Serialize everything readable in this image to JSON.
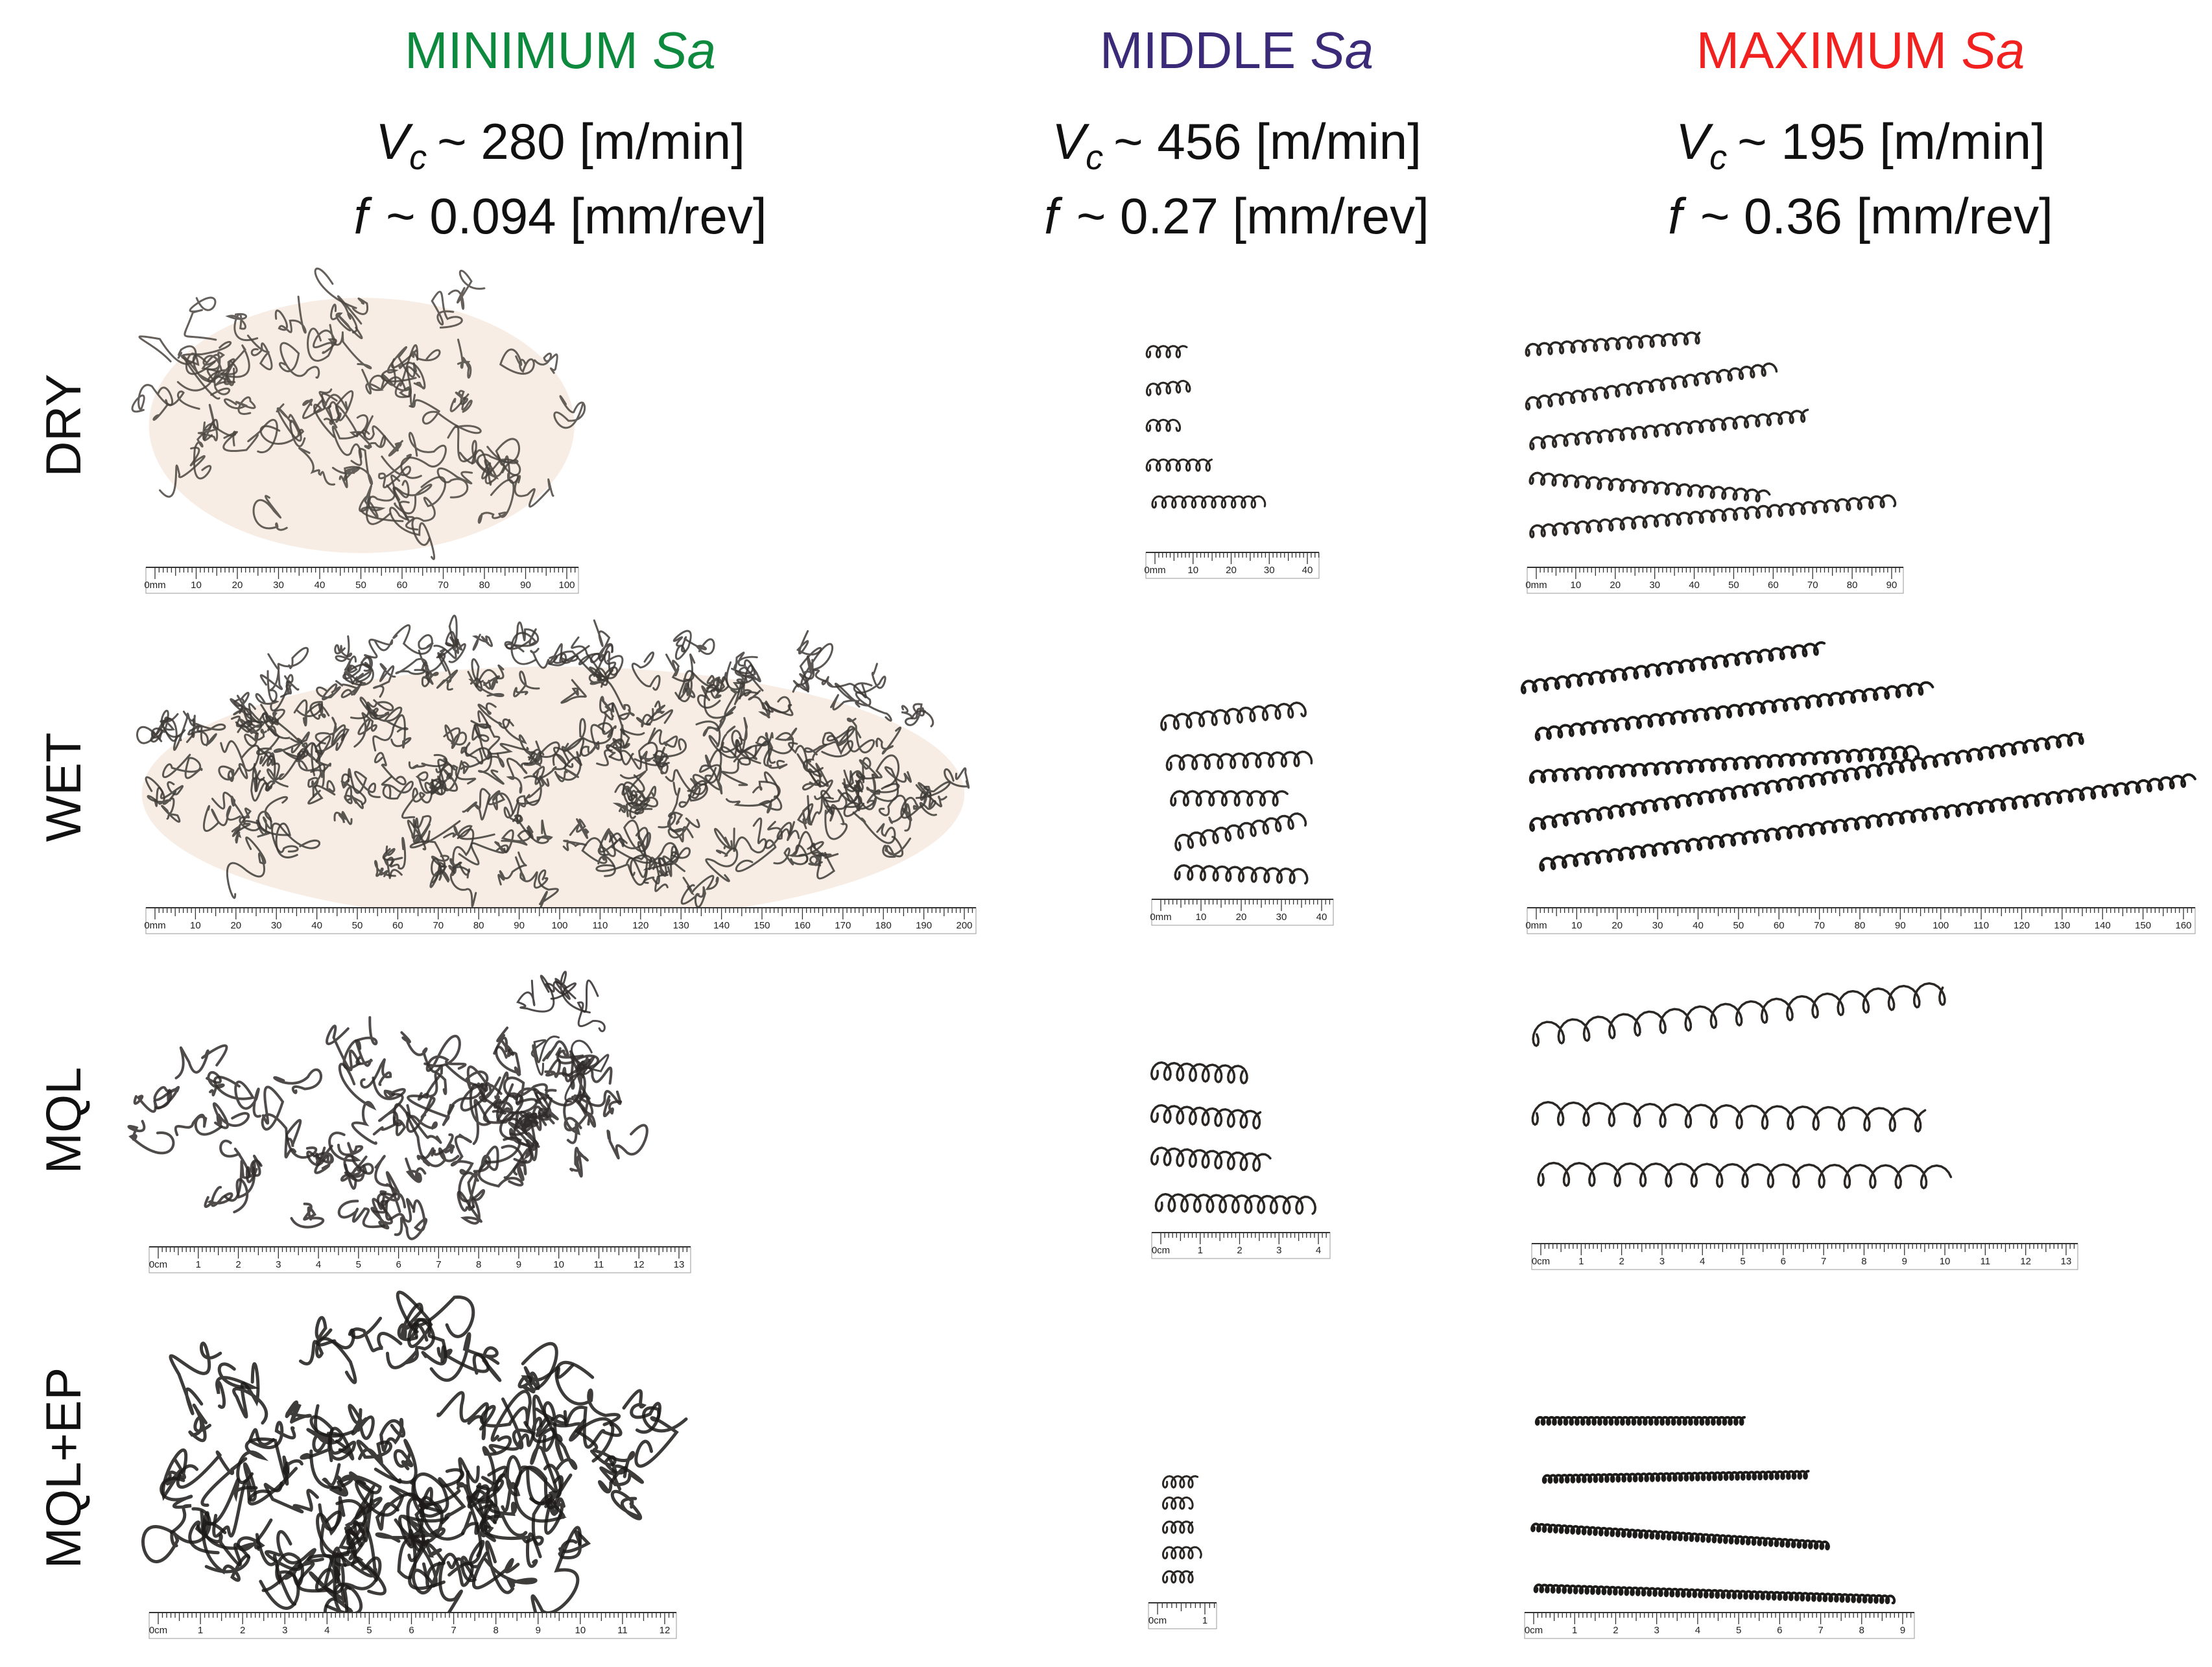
{
  "columns": [
    {
      "name": "MINIMUM",
      "symbol": "Sa",
      "color": "#0d8a3e",
      "speed": {
        "symbol": "V",
        "subscript": "c",
        "text": "~ 280 [m/min]"
      },
      "feed": {
        "symbol": "f",
        "text": "~ 0.094 [mm/rev]"
      }
    },
    {
      "name": "MIDDLE",
      "symbol": "Sa",
      "color": "#3b2a78",
      "speed": {
        "symbol": "V",
        "subscript": "c",
        "text": "~ 456 [m/min]"
      },
      "feed": {
        "symbol": "f",
        "text": "~ 0.27 [mm/rev]"
      }
    },
    {
      "name": "MAXIMUM",
      "symbol": "Sa",
      "color": "#f0211f",
      "speed": {
        "symbol": "V",
        "subscript": "c",
        "text": "~ 195 [m/min]"
      },
      "feed": {
        "symbol": "f",
        "text": "~ 0.36 [mm/rev]"
      }
    }
  ],
  "rows": [
    {
      "label": "DRY",
      "rulers": [
        [
          "0mm",
          "10",
          "20",
          "30",
          "40",
          "50",
          "60",
          "70",
          "80",
          "90",
          "100"
        ],
        [
          "0mm",
          "10",
          "20",
          "30",
          "40"
        ],
        [
          "0mm",
          "10",
          "20",
          "30",
          "40",
          "50",
          "60",
          "70",
          "80",
          "90"
        ]
      ]
    },
    {
      "label": "WET",
      "rulers": [
        [
          "0mm",
          "10",
          "20",
          "30",
          "40",
          "50",
          "60",
          "70",
          "80",
          "90",
          "100",
          "110",
          "120",
          "130",
          "140",
          "150",
          "160",
          "170",
          "180",
          "190",
          "200"
        ],
        [
          "0mm",
          "10",
          "20",
          "30",
          "40"
        ],
        [
          "0mm",
          "10",
          "20",
          "30",
          "40",
          "50",
          "60",
          "70",
          "80",
          "90",
          "100",
          "110",
          "120",
          "130",
          "140",
          "150",
          "160"
        ]
      ]
    },
    {
      "label": "MQL",
      "rulers": [
        [
          "0cm",
          "1",
          "2",
          "3",
          "4",
          "5",
          "6",
          "7",
          "8",
          "9",
          "10",
          "11",
          "12",
          "13"
        ],
        [
          "0cm",
          "1",
          "2",
          "3",
          "4"
        ],
        [
          "0cm",
          "1",
          "2",
          "3",
          "4",
          "5",
          "6",
          "7",
          "8",
          "9",
          "10",
          "11",
          "12",
          "13"
        ]
      ]
    },
    {
      "label": "MQL+EP",
      "rulers": [
        [
          "0cm",
          "1",
          "2",
          "3",
          "4",
          "5",
          "6",
          "7",
          "8",
          "9",
          "10",
          "11",
          "12"
        ],
        [
          "0cm",
          "1"
        ],
        [
          "0cm",
          "1",
          "2",
          "3",
          "4",
          "5",
          "6",
          "7",
          "8",
          "9"
        ]
      ]
    }
  ]
}
